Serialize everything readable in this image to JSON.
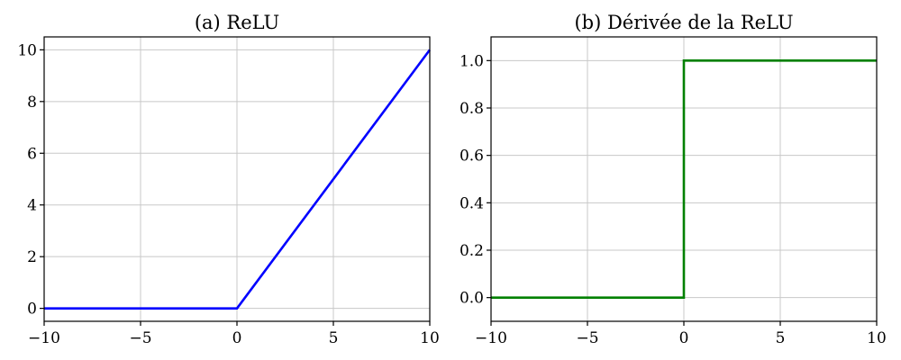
{
  "chart_data": [
    {
      "type": "line",
      "title": "(a) ReLU",
      "xlabel": "",
      "ylabel": "",
      "xlim": [
        -10,
        10
      ],
      "ylim": [
        -0.5,
        10.5
      ],
      "xticks": [
        -10,
        -5,
        0,
        5,
        10
      ],
      "xtick_labels": [
        "−10",
        "−5",
        "0",
        "5",
        "10"
      ],
      "yticks": [
        0,
        2,
        4,
        6,
        8,
        10
      ],
      "ytick_labels": [
        "0",
        "2",
        "4",
        "6",
        "8",
        "10"
      ],
      "grid": true,
      "series": [
        {
          "color": "#0000ff",
          "x": [
            -10,
            0,
            10
          ],
          "y": [
            0,
            0,
            10
          ]
        }
      ]
    },
    {
      "type": "line",
      "title": "(b) Dérivée de la ReLU",
      "xlabel": "",
      "ylabel": "",
      "xlim": [
        -10,
        10
      ],
      "ylim": [
        -0.1,
        1.1
      ],
      "xticks": [
        -10,
        -5,
        0,
        5,
        10
      ],
      "xtick_labels": [
        "−10",
        "−5",
        "0",
        "5",
        "10"
      ],
      "yticks": [
        0,
        0.2,
        0.4,
        0.6,
        0.8,
        1.0
      ],
      "ytick_labels": [
        "0.0",
        "0.2",
        "0.4",
        "0.6",
        "0.8",
        "1.0"
      ],
      "grid": true,
      "series": [
        {
          "color": "#008000",
          "x": [
            -10,
            0,
            0,
            10
          ],
          "y": [
            0,
            0,
            1,
            1
          ]
        }
      ]
    }
  ]
}
